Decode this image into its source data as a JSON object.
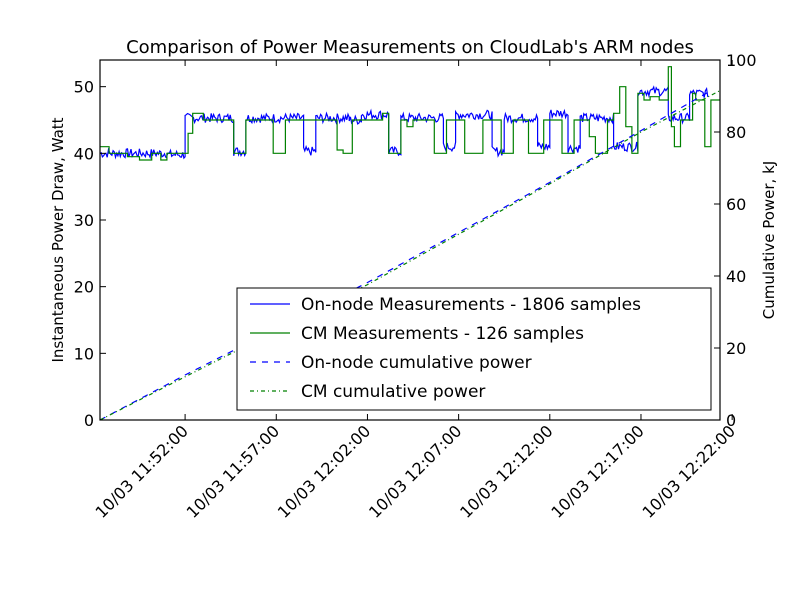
{
  "chart_data": {
    "type": "line",
    "title": "Comparison of Power Measurements on CloudLab's ARM nodes",
    "ylabel_left": "Instantaneous Power Draw, Watt",
    "ylabel_right": "Cumulative Power, kJ",
    "ylim_left": [
      0,
      54
    ],
    "yticks_left": [
      "0",
      "10",
      "20",
      "30",
      "40",
      "50"
    ],
    "ylim_right": [
      0,
      100
    ],
    "yticks_right": [
      "0",
      "20",
      "40",
      "60",
      "80",
      "100"
    ],
    "x_unit": "minutes",
    "xlim": [
      "10/03 11:47:20",
      "10/03 12:21:20"
    ],
    "xticks": [
      "10/03 11:52:00",
      "10/03 11:57:00",
      "10/03 12:02:00",
      "10/03 12:07:00",
      "10/03 12:12:00",
      "10/03 12:17:00",
      "10/03 12:22:00"
    ],
    "legend": {
      "location": "lower right",
      "entries": [
        "On-node Measurements - 1806 samples",
        "CM Measurements - 126 samples",
        "On-node cumulative power",
        "CM cumulative power"
      ]
    },
    "series": [
      {
        "name": "On-node Measurements - 1806 samples",
        "axis": "left",
        "color": "#0000ff",
        "style": "solid",
        "noise": 0.7,
        "segments": [
          {
            "x0": "10/03 11:47:20",
            "x1": "10/03 11:51:00",
            "y": 40.0
          },
          {
            "x0": "10/03 11:51:00",
            "x1": "10/03 11:52:00",
            "y": 39.8
          },
          {
            "x0": "10/03 11:52:00",
            "x1": "10/03 11:54:40",
            "y": 45.3
          },
          {
            "x0": "10/03 11:54:40",
            "x1": "10/03 11:55:20",
            "y": 40.3
          },
          {
            "x0": "10/03 11:55:20",
            "x1": "10/03 11:58:30",
            "y": 45.3
          },
          {
            "x0": "10/03 11:58:30",
            "x1": "10/03 11:59:10",
            "y": 40.3
          },
          {
            "x0": "10/03 11:59:10",
            "x1": "10/03 12:01:00",
            "y": 45.3
          },
          {
            "x0": "10/03 12:01:00",
            "x1": "10/03 12:01:40",
            "y": 45.0
          },
          {
            "x0": "10/03 12:01:40",
            "x1": "10/03 12:03:10",
            "y": 45.8
          },
          {
            "x0": "10/03 12:03:10",
            "x1": "10/03 12:03:50",
            "y": 40.3
          },
          {
            "x0": "10/03 12:03:50",
            "x1": "10/03 12:06:10",
            "y": 45.3
          },
          {
            "x0": "10/03 12:06:10",
            "x1": "10/03 12:06:50",
            "y": 41.0
          },
          {
            "x0": "10/03 12:06:50",
            "x1": "10/03 12:08:50",
            "y": 45.8
          },
          {
            "x0": "10/03 12:08:50",
            "x1": "10/03 12:09:30",
            "y": 40.3
          },
          {
            "x0": "10/03 12:09:30",
            "x1": "10/03 12:11:20",
            "y": 45.3
          },
          {
            "x0": "10/03 12:11:20",
            "x1": "10/03 12:12:00",
            "y": 41.0
          },
          {
            "x0": "10/03 12:12:00",
            "x1": "10/03 12:13:00",
            "y": 46.0
          },
          {
            "x0": "10/03 12:13:00",
            "x1": "10/03 12:13:40",
            "y": 40.8
          },
          {
            "x0": "10/03 12:13:40",
            "x1": "10/03 12:15:30",
            "y": 45.3
          },
          {
            "x0": "10/03 12:15:30",
            "x1": "10/03 12:16:50",
            "y": 41.0
          },
          {
            "x0": "10/03 12:16:50",
            "x1": "10/03 12:18:30",
            "y": 49.3
          },
          {
            "x0": "10/03 12:18:30",
            "x1": "10/03 12:19:40",
            "y": 45.3
          },
          {
            "x0": "10/03 12:19:40",
            "x1": "10/03 12:20:40",
            "y": 49.0
          }
        ]
      },
      {
        "name": "CM Measurements - 126 samples",
        "axis": "left",
        "color": "#008000",
        "style": "step",
        "points": [
          [
            "10/03 11:47:20",
            41
          ],
          [
            "10/03 11:47:50",
            40
          ],
          [
            "10/03 11:48:50",
            39.5
          ],
          [
            "10/03 11:49:30",
            39
          ],
          [
            "10/03 11:50:10",
            40
          ],
          [
            "10/03 11:50:40",
            39
          ],
          [
            "10/03 11:51:00",
            40
          ],
          [
            "10/03 11:52:10",
            43
          ],
          [
            "10/03 11:52:25",
            46
          ],
          [
            "10/03 11:53:00",
            45
          ],
          [
            "10/03 11:54:40",
            40
          ],
          [
            "10/03 11:55:20",
            45
          ],
          [
            "10/03 11:56:50",
            40
          ],
          [
            "10/03 11:57:30",
            45
          ],
          [
            "10/03 11:58:10",
            45
          ],
          [
            "10/03 11:59:10",
            45
          ],
          [
            "10/03 12:00:20",
            40.5
          ],
          [
            "10/03 12:00:40",
            40
          ],
          [
            "10/03 12:01:10",
            45
          ],
          [
            "10/03 12:02:20",
            45
          ],
          [
            "10/03 12:02:50",
            46
          ],
          [
            "10/03 12:03:10",
            40
          ],
          [
            "10/03 12:03:50",
            45
          ],
          [
            "10/03 12:04:10",
            44
          ],
          [
            "10/03 12:04:30",
            45
          ],
          [
            "10/03 12:05:40",
            40
          ],
          [
            "10/03 12:06:20",
            45
          ],
          [
            "10/03 12:07:20",
            40
          ],
          [
            "10/03 12:08:20",
            45
          ],
          [
            "10/03 12:09:20",
            40
          ],
          [
            "10/03 12:10:00",
            45
          ],
          [
            "10/03 12:10:50",
            40
          ],
          [
            "10/03 12:11:40",
            45
          ],
          [
            "10/03 12:12:40",
            40
          ],
          [
            "10/03 12:13:20",
            45
          ],
          [
            "10/03 12:14:10",
            42.5
          ],
          [
            "10/03 12:14:30",
            40
          ],
          [
            "10/03 12:15:10",
            45
          ],
          [
            "10/03 12:15:30",
            46
          ],
          [
            "10/03 12:15:50",
            50
          ],
          [
            "10/03 12:16:10",
            44
          ],
          [
            "10/03 12:16:30",
            40
          ],
          [
            "10/03 12:16:50",
            49
          ],
          [
            "10/03 12:17:10",
            48
          ],
          [
            "10/03 12:17:30",
            48.5
          ],
          [
            "10/03 12:18:00",
            48
          ],
          [
            "10/03 12:18:30",
            53
          ],
          [
            "10/03 12:18:40",
            44
          ],
          [
            "10/03 12:18:50",
            41
          ],
          [
            "10/03 12:19:10",
            45
          ],
          [
            "10/03 12:19:30",
            45
          ],
          [
            "10/03 12:19:50",
            49
          ],
          [
            "10/03 12:20:00",
            48
          ],
          [
            "10/03 12:20:30",
            41
          ],
          [
            "10/03 12:20:50",
            48
          ],
          [
            "10/03 12:21:20",
            48
          ]
        ]
      },
      {
        "name": "On-node cumulative power",
        "axis": "right",
        "color": "#0000ff",
        "style": "dashed",
        "points": [
          [
            "10/03 11:47:20",
            0
          ],
          [
            "10/03 11:52:00",
            12.5
          ],
          [
            "10/03 12:02:00",
            38.2
          ],
          [
            "10/03 12:12:00",
            66.0
          ],
          [
            "10/03 12:17:00",
            80.4
          ],
          [
            "10/03 12:20:40",
            91.0
          ]
        ]
      },
      {
        "name": "CM cumulative power",
        "axis": "right",
        "color": "#008000",
        "style": "dashdot",
        "points": [
          [
            "10/03 11:47:20",
            0
          ],
          [
            "10/03 11:52:00",
            12.0
          ],
          [
            "10/03 12:02:00",
            37.6
          ],
          [
            "10/03 12:12:00",
            65.6
          ],
          [
            "10/03 12:17:00",
            80.0
          ],
          [
            "10/03 12:21:20",
            91.5
          ]
        ]
      }
    ]
  }
}
